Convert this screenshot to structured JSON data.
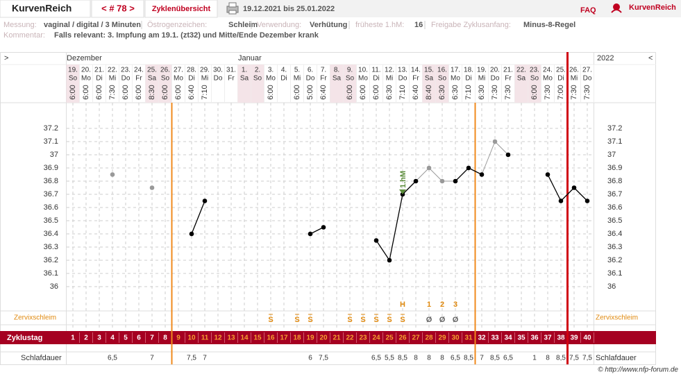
{
  "header": {
    "brand": "KurvenReich",
    "cycle": "< # 78 >",
    "tab": "Zyklenübersicht",
    "range": "19.12.2021 bis 25.01.2022",
    "faq": "FAQ",
    "logo": "KurvenReich"
  },
  "info": {
    "fields": [
      {
        "label": "Messung:",
        "value": "vaginal / digital / 3 Minuten"
      },
      {
        "label": "Östrogenzeichen:",
        "value": "Schleim"
      },
      {
        "label": "Verwendung:",
        "value": "Verhütung"
      },
      {
        "label": "früheste 1.hM:",
        "value": "16"
      },
      {
        "label": "Freigabe Zyklusanfang:",
        "value": "Minus-8-Regel"
      }
    ],
    "comment": {
      "label": "Kommentar:",
      "value": "Falls relevant: 3. Impfung am 19.1. (zt32) und Mitte/Ende Dezember krank"
    }
  },
  "chart_data": {
    "type": "line",
    "nav_prev": ">",
    "nav_next": "<",
    "year": "2022",
    "month_labels": [
      "Dezember",
      null,
      null,
      null,
      null,
      null,
      null,
      null,
      null,
      null,
      null,
      null,
      null,
      "Januar",
      null,
      null,
      null,
      null,
      null,
      null,
      null,
      null,
      null,
      null,
      null,
      null,
      null,
      null,
      null,
      null,
      null,
      null,
      null,
      null,
      null,
      null,
      null,
      null,
      null,
      null
    ],
    "categories": [
      "19.",
      "20.",
      "21.",
      "22.",
      "23.",
      "24.",
      "25.",
      "26.",
      "27.",
      "28.",
      "29.",
      "30.",
      "31.",
      "1.",
      "2.",
      "3.",
      "4.",
      "5.",
      "6.",
      "7.",
      "8.",
      "9.",
      "10.",
      "11.",
      "12.",
      "13.",
      "14.",
      "15.",
      "16.",
      "17.",
      "18.",
      "19.",
      "20.",
      "21.",
      "22.",
      "23.",
      "24.",
      "25.",
      "26.",
      "27."
    ],
    "weekdays": [
      "So",
      "Mo",
      "Di",
      "Mi",
      "Do",
      "Fr",
      "Sa",
      "So",
      "Mo",
      "Di",
      "Mi",
      "Do",
      "Fr",
      "Sa",
      "So",
      "Mo",
      "Di",
      "Mi",
      "Do",
      "Fr",
      "Sa",
      "So",
      "Mo",
      "Di",
      "Mi",
      "Do",
      "Fr",
      "Sa",
      "So",
      "Mo",
      "Di",
      "Mi",
      "Do",
      "Fr",
      "Sa",
      "So",
      "Mo",
      "Di",
      "Mi",
      "Do"
    ],
    "weekend": [
      true,
      false,
      false,
      false,
      false,
      false,
      true,
      true,
      false,
      false,
      false,
      false,
      false,
      true,
      true,
      false,
      false,
      false,
      false,
      false,
      true,
      true,
      false,
      false,
      false,
      false,
      false,
      true,
      true,
      false,
      false,
      false,
      false,
      false,
      true,
      true,
      false,
      false,
      false,
      false
    ],
    "times": [
      "6:00",
      "6:00",
      "6:00",
      "7:30",
      "6:00",
      "6:00",
      "8:30",
      "6:00",
      "6:00",
      "6:40",
      "7:10",
      null,
      null,
      null,
      null,
      "6:00",
      null,
      "6:00",
      "5:00",
      "6:40",
      null,
      "6:00",
      "6:00",
      "6:00",
      "6:30",
      "7:10",
      "6:40",
      "8:40",
      "6:30",
      "6:30",
      "7:10",
      "6:30",
      "7:30",
      "7:30",
      null,
      "6:00",
      "7:30",
      "7:00",
      "7:30",
      "7:30"
    ],
    "series": [
      {
        "color": "#000000",
        "excluded_color": "#999999",
        "values": [
          null,
          null,
          null,
          36.85,
          null,
          null,
          36.75,
          null,
          null,
          36.4,
          36.65,
          null,
          null,
          null,
          null,
          null,
          null,
          null,
          36.4,
          36.45,
          null,
          null,
          null,
          36.35,
          36.2,
          36.7,
          36.8,
          36.9,
          36.8,
          36.8,
          36.9,
          36.85,
          37.1,
          37.0,
          null,
          null,
          36.85,
          36.65,
          36.75,
          36.65
        ],
        "excluded": [
          false,
          false,
          false,
          true,
          false,
          false,
          true,
          false,
          false,
          false,
          false,
          false,
          false,
          false,
          false,
          false,
          false,
          false,
          false,
          false,
          false,
          false,
          false,
          false,
          false,
          false,
          false,
          true,
          true,
          false,
          false,
          false,
          true,
          false,
          false,
          false,
          false,
          false,
          false,
          false
        ]
      }
    ],
    "ylim": [
      36,
      37.2
    ],
    "yticks": [
      36,
      36.1,
      36.2,
      36.3,
      36.4,
      36.5,
      36.6,
      36.7,
      36.8,
      36.9,
      37,
      37.1,
      37.2
    ],
    "grid": true,
    "annotation": {
      "text": "1.hM",
      "index": 25,
      "color": "#5b8c3a"
    },
    "cervix": {
      "label": "Zervixschleim",
      "symbols": [
        null,
        null,
        null,
        null,
        null,
        null,
        null,
        null,
        null,
        null,
        null,
        null,
        null,
        null,
        null,
        "S",
        null,
        "S",
        "S",
        null,
        null,
        "S",
        "S",
        "S",
        "S",
        "S",
        null,
        "Ø",
        "Ø",
        "Ø",
        null,
        null,
        null,
        null,
        null,
        null,
        null,
        null,
        null,
        null
      ],
      "marks": [
        null,
        null,
        null,
        null,
        null,
        null,
        null,
        null,
        null,
        null,
        null,
        null,
        null,
        null,
        null,
        null,
        null,
        null,
        null,
        null,
        null,
        null,
        null,
        null,
        null,
        "H",
        null,
        "1",
        "2",
        "3",
        null,
        null,
        null,
        null,
        null,
        null,
        null,
        null,
        null,
        null
      ]
    },
    "cycle_day": {
      "label": "Zyklustag",
      "values": [
        1,
        2,
        3,
        4,
        5,
        6,
        7,
        8,
        9,
        10,
        11,
        12,
        13,
        14,
        15,
        16,
        17,
        18,
        19,
        20,
        21,
        22,
        23,
        24,
        25,
        26,
        27,
        28,
        29,
        30,
        31,
        32,
        33,
        34,
        35,
        36,
        37,
        38,
        39,
        40
      ]
    },
    "sleep": {
      "label": "Schlafdauer",
      "values": [
        null,
        null,
        null,
        "6,5",
        null,
        null,
        "7",
        null,
        null,
        "7,5",
        "7",
        null,
        null,
        null,
        null,
        null,
        null,
        null,
        "6",
        "7,5",
        null,
        null,
        null,
        "6,5",
        "5,5",
        "8,5",
        "8",
        "8",
        "8",
        "6,5",
        "8,5",
        "7",
        "8,5",
        "6,5",
        null,
        "1",
        "8",
        "8,5",
        "7,5",
        "7,5"
      ]
    }
  },
  "footer": "© http://www.nfp-forum.de"
}
